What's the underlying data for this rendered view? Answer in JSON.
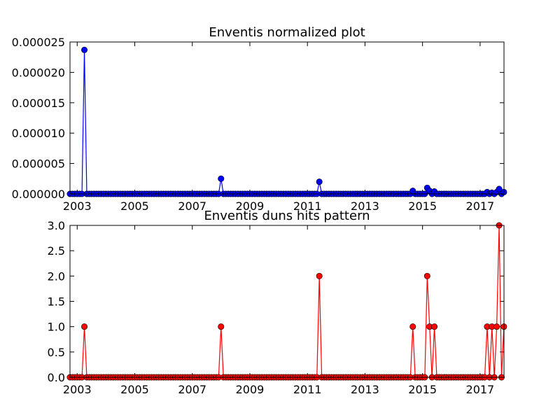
{
  "chart_data": [
    {
      "type": "line",
      "title": "Enventis normalized plot",
      "xlabel": "",
      "ylabel": "",
      "xlim": [
        2002.75,
        2017.83
      ],
      "ylim": [
        0,
        2.5e-05
      ],
      "x_ticks": [
        2003,
        2005,
        2007,
        2009,
        2011,
        2013,
        2015,
        2017
      ],
      "x_tick_labels": [
        "2003",
        "2005",
        "2007",
        "2009",
        "2011",
        "2013",
        "2015",
        "2017"
      ],
      "y_ticks": [
        0,
        5e-06,
        1e-05,
        1.5e-05,
        2e-05,
        2.5e-05
      ],
      "y_tick_labels": [
        "0.000000",
        "0.000005",
        "0.000010",
        "0.000015",
        "0.000020",
        "0.000025"
      ],
      "grid": false,
      "series_color": "#0000ff",
      "baseline_start": 2002.75,
      "baseline_end": 2017.83,
      "baseline_step": 0.0833,
      "points": [
        {
          "x": 2003.25,
          "y": 2.37e-05
        },
        {
          "x": 2008.0,
          "y": 2.5e-06
        },
        {
          "x": 2011.42,
          "y": 2e-06
        },
        {
          "x": 2014.67,
          "y": 5e-07
        },
        {
          "x": 2015.17,
          "y": 1e-06
        },
        {
          "x": 2015.25,
          "y": 5e-07
        },
        {
          "x": 2015.42,
          "y": 4e-07
        },
        {
          "x": 2017.25,
          "y": 3e-07
        },
        {
          "x": 2017.42,
          "y": 2e-07
        },
        {
          "x": 2017.58,
          "y": 3e-07
        },
        {
          "x": 2017.67,
          "y": 8e-07
        },
        {
          "x": 2017.83,
          "y": 3e-07
        }
      ]
    },
    {
      "type": "line",
      "title": "Enventis duns hits pattern",
      "xlabel": "",
      "ylabel": "",
      "xlim": [
        2002.75,
        2017.83
      ],
      "ylim": [
        0,
        3
      ],
      "x_ticks": [
        2003,
        2005,
        2007,
        2009,
        2011,
        2013,
        2015,
        2017
      ],
      "x_tick_labels": [
        "2003",
        "2005",
        "2007",
        "2009",
        "2011",
        "2013",
        "2015",
        "2017"
      ],
      "y_ticks": [
        0,
        0.5,
        1,
        1.5,
        2,
        2.5,
        3
      ],
      "y_tick_labels": [
        "0.0",
        "0.5",
        "1.0",
        "1.5",
        "2.0",
        "2.5",
        "3.0"
      ],
      "grid": false,
      "series_color": "#ff0000",
      "baseline_start": 2002.75,
      "baseline_end": 2017.83,
      "baseline_step": 0.0833,
      "points": [
        {
          "x": 2003.25,
          "y": 1
        },
        {
          "x": 2008.0,
          "y": 1
        },
        {
          "x": 2011.42,
          "y": 2
        },
        {
          "x": 2014.67,
          "y": 1
        },
        {
          "x": 2015.17,
          "y": 2
        },
        {
          "x": 2015.25,
          "y": 1
        },
        {
          "x": 2015.42,
          "y": 1
        },
        {
          "x": 2017.25,
          "y": 1
        },
        {
          "x": 2017.42,
          "y": 1
        },
        {
          "x": 2017.58,
          "y": 1
        },
        {
          "x": 2017.67,
          "y": 3
        },
        {
          "x": 2017.83,
          "y": 1
        }
      ]
    }
  ]
}
